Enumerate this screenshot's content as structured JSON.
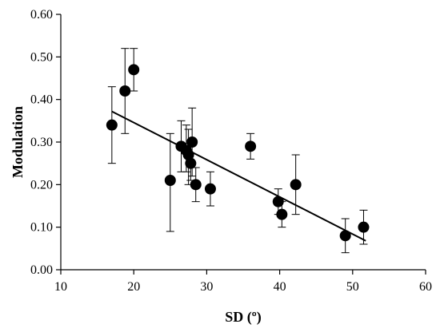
{
  "chart_data": {
    "type": "scatter",
    "title": "",
    "xlabel": "SD (º)",
    "ylabel": "Modulation",
    "xlim": [
      10,
      60
    ],
    "ylim": [
      0,
      0.6
    ],
    "x_ticks": [
      "10",
      "20",
      "30",
      "40",
      "50",
      "60"
    ],
    "y_ticks": [
      "0.00",
      "0.10",
      "0.20",
      "0.30",
      "0.40",
      "0.50",
      "0.60"
    ],
    "grid": false,
    "legend": "none",
    "colors": {
      "marker": "#000000",
      "line": "#000000",
      "axis": "#000000"
    },
    "points": [
      {
        "x": 17.0,
        "y": 0.34,
        "err_low": 0.25,
        "err_high": 0.43
      },
      {
        "x": 18.8,
        "y": 0.42,
        "err_low": 0.32,
        "err_high": 0.52
      },
      {
        "x": 20.0,
        "y": 0.47,
        "err_low": 0.42,
        "err_high": 0.52
      },
      {
        "x": 25.0,
        "y": 0.21,
        "err_low": 0.09,
        "err_high": 0.32
      },
      {
        "x": 26.5,
        "y": 0.29,
        "err_low": 0.23,
        "err_high": 0.35
      },
      {
        "x": 27.2,
        "y": 0.28,
        "err_low": 0.23,
        "err_high": 0.34
      },
      {
        "x": 27.5,
        "y": 0.27,
        "err_low": 0.2,
        "err_high": 0.33
      },
      {
        "x": 27.8,
        "y": 0.25,
        "err_low": 0.21,
        "err_high": 0.29
      },
      {
        "x": 28.0,
        "y": 0.3,
        "err_low": 0.22,
        "err_high": 0.38
      },
      {
        "x": 28.5,
        "y": 0.2,
        "err_low": 0.16,
        "err_high": 0.24
      },
      {
        "x": 30.5,
        "y": 0.19,
        "err_low": 0.15,
        "err_high": 0.23
      },
      {
        "x": 36.0,
        "y": 0.29,
        "err_low": 0.26,
        "err_high": 0.32
      },
      {
        "x": 39.8,
        "y": 0.16,
        "err_low": 0.13,
        "err_high": 0.19
      },
      {
        "x": 40.3,
        "y": 0.13,
        "err_low": 0.1,
        "err_high": 0.16
      },
      {
        "x": 42.2,
        "y": 0.2,
        "err_low": 0.13,
        "err_high": 0.27
      },
      {
        "x": 49.0,
        "y": 0.08,
        "err_low": 0.04,
        "err_high": 0.12
      },
      {
        "x": 51.5,
        "y": 0.1,
        "err_low": 0.06,
        "err_high": 0.14
      }
    ],
    "trendline": {
      "x": [
        17.0,
        51.8
      ],
      "y": [
        0.372,
        0.068
      ]
    }
  }
}
